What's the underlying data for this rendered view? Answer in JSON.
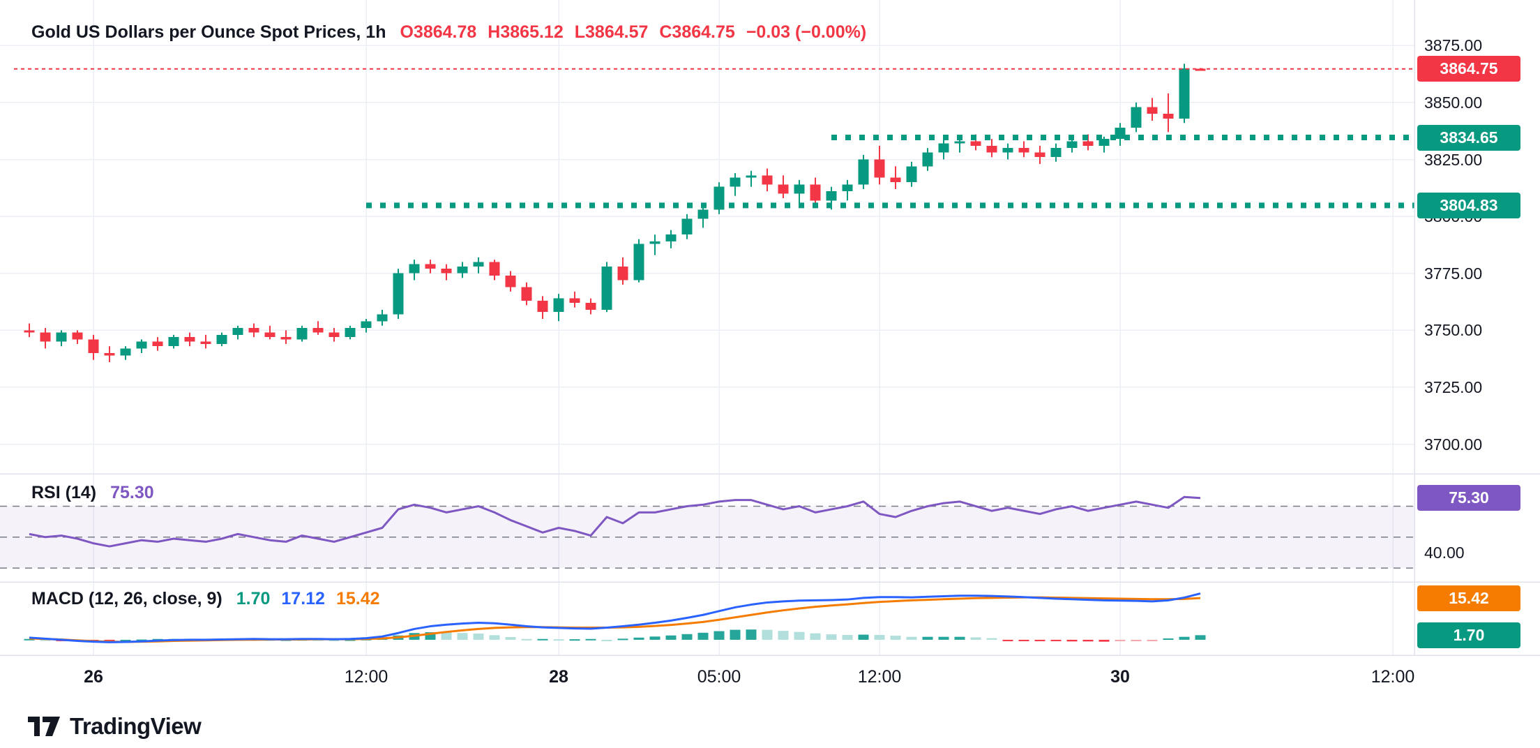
{
  "header": {
    "title": "Gold US Dollars per Ounce Spot Prices, 1h",
    "open": "O3864.78",
    "high": "H3865.12",
    "low": "L3864.57",
    "close": "C3864.75",
    "change": "−0.03 (−0.00%)"
  },
  "rsi_header": {
    "label": "RSI (14)",
    "value": "75.30"
  },
  "macd_header": {
    "label": "MACD (12, 26, close, 9)",
    "hist": "1.70",
    "macd": "17.12",
    "signal": "15.42"
  },
  "price_axis": {
    "labels": [
      "3875.00",
      "3850.00",
      "3825.00",
      "3800.00",
      "3775.00",
      "3750.00",
      "3725.00",
      "3700.00"
    ],
    "values": [
      3875,
      3850,
      3825,
      3800,
      3775,
      3750,
      3725,
      3700
    ]
  },
  "rsi_axis": {
    "label": "40.00",
    "value": 40
  },
  "badges": {
    "last_price": "3864.75",
    "level_upper": "3834.65",
    "level_lower": "3804.83",
    "rsi": "75.30",
    "macd_signal": "15.42",
    "macd_hist": "1.70"
  },
  "time_axis": {
    "labels": [
      {
        "text": "26",
        "index": 4,
        "bold": true
      },
      {
        "text": "12:00",
        "index": 21,
        "bold": false
      },
      {
        "text": "28",
        "index": 33,
        "bold": true
      },
      {
        "text": "05:00",
        "index": 43,
        "bold": false
      },
      {
        "text": "12:00",
        "index": 53,
        "bold": false
      },
      {
        "text": "30",
        "index": 68,
        "bold": true
      },
      {
        "text": "12:00",
        "index": 85,
        "bold": false
      }
    ]
  },
  "footer": {
    "brand": "TradingView"
  },
  "colors": {
    "up": "#089981",
    "down": "#f23645",
    "last_price_line": "#f23645",
    "level": "#089981",
    "rsi": "#7e57c2",
    "band_fill": "rgba(126,87,194,0.08)",
    "band_line": "#787b86",
    "macd": "#2962ff",
    "signal": "#f57c00",
    "hist_up": "#26a69a",
    "hist_up_fade": "#b2dfdb",
    "hist_down": "#f23645",
    "hist_down_fade": "#f5a6ab",
    "grid": "#eceff5",
    "separator": "#e0e3eb",
    "text": "#131722"
  },
  "chart_data": {
    "type": "candlestick",
    "title": "Gold US Dollars per Ounce Spot Prices, 1h",
    "interval": "1h",
    "price_pane": {
      "ylim": [
        3687,
        3895
      ],
      "gridlines": [
        3700,
        3725,
        3750,
        3775,
        3800,
        3825,
        3850,
        3875
      ],
      "levels": [
        {
          "value": 3864.75,
          "label": "3864.75",
          "style": "dashed",
          "color": "#f23645",
          "full_width": true
        },
        {
          "value": 3834.65,
          "label": "3834.65",
          "style": "dotted",
          "color": "#089981",
          "from_index": 50
        },
        {
          "value": 3804.83,
          "label": "3804.83",
          "style": "dotted",
          "color": "#089981",
          "from_index": 21
        }
      ],
      "candles": [
        [
          3750,
          3753,
          3747,
          3749
        ],
        [
          3749,
          3751,
          3742,
          3745
        ],
        [
          3745,
          3750,
          3743,
          3749
        ],
        [
          3749,
          3750,
          3744,
          3746
        ],
        [
          3746,
          3748,
          3737,
          3740
        ],
        [
          3740,
          3743,
          3736,
          3739
        ],
        [
          3739,
          3743,
          3737,
          3742
        ],
        [
          3742,
          3746,
          3740,
          3745
        ],
        [
          3745,
          3747,
          3741,
          3743
        ],
        [
          3743,
          3748,
          3742,
          3747
        ],
        [
          3747,
          3749,
          3743,
          3745
        ],
        [
          3745,
          3748,
          3742,
          3744
        ],
        [
          3744,
          3749,
          3743,
          3748
        ],
        [
          3748,
          3752,
          3746,
          3751
        ],
        [
          3751,
          3753,
          3747,
          3749
        ],
        [
          3749,
          3752,
          3746,
          3747
        ],
        [
          3747,
          3750,
          3744,
          3746
        ],
        [
          3746,
          3752,
          3745,
          3751
        ],
        [
          3751,
          3754,
          3748,
          3749
        ],
        [
          3749,
          3751,
          3745,
          3747
        ],
        [
          3747,
          3752,
          3746,
          3751
        ],
        [
          3751,
          3755,
          3749,
          3754
        ],
        [
          3754,
          3759,
          3752,
          3757
        ],
        [
          3757,
          3777,
          3755,
          3775
        ],
        [
          3775,
          3781,
          3772,
          3779
        ],
        [
          3779,
          3781,
          3775,
          3777
        ],
        [
          3777,
          3779,
          3772,
          3775
        ],
        [
          3775,
          3780,
          3773,
          3778
        ],
        [
          3778,
          3782,
          3775,
          3780
        ],
        [
          3780,
          3781,
          3772,
          3774
        ],
        [
          3774,
          3776,
          3767,
          3769
        ],
        [
          3769,
          3771,
          3761,
          3763
        ],
        [
          3763,
          3765,
          3755,
          3758
        ],
        [
          3758,
          3766,
          3754,
          3764
        ],
        [
          3764,
          3767,
          3760,
          3762
        ],
        [
          3762,
          3764,
          3757,
          3759
        ],
        [
          3759,
          3780,
          3758,
          3778
        ],
        [
          3778,
          3782,
          3770,
          3772
        ],
        [
          3772,
          3790,
          3771,
          3788
        ],
        [
          3788,
          3792,
          3783,
          3789
        ],
        [
          3789,
          3794,
          3786,
          3792
        ],
        [
          3792,
          3801,
          3790,
          3799
        ],
        [
          3799,
          3805,
          3795,
          3803
        ],
        [
          3803,
          3815,
          3801,
          3813
        ],
        [
          3813,
          3819,
          3809,
          3817
        ],
        [
          3817,
          3820,
          3813,
          3818
        ],
        [
          3818,
          3821,
          3811,
          3814
        ],
        [
          3814,
          3818,
          3808,
          3810
        ],
        [
          3810,
          3816,
          3806,
          3814
        ],
        [
          3814,
          3817,
          3804,
          3807
        ],
        [
          3807,
          3813,
          3803,
          3811
        ],
        [
          3811,
          3816,
          3807,
          3814
        ],
        [
          3814,
          3827,
          3812,
          3825
        ],
        [
          3825,
          3831,
          3814,
          3817
        ],
        [
          3817,
          3822,
          3812,
          3815
        ],
        [
          3815,
          3824,
          3813,
          3822
        ],
        [
          3822,
          3830,
          3820,
          3828
        ],
        [
          3828,
          3834,
          3825,
          3832
        ],
        [
          3832,
          3835,
          3828,
          3833
        ],
        [
          3833,
          3836,
          3829,
          3831
        ],
        [
          3831,
          3834,
          3826,
          3828
        ],
        [
          3828,
          3832,
          3825,
          3830
        ],
        [
          3830,
          3833,
          3826,
          3828
        ],
        [
          3828,
          3831,
          3823,
          3826
        ],
        [
          3826,
          3832,
          3824,
          3830
        ],
        [
          3830,
          3835,
          3828,
          3833
        ],
        [
          3833,
          3836,
          3829,
          3831
        ],
        [
          3831,
          3835,
          3828,
          3834
        ],
        [
          3834,
          3841,
          3831,
          3839
        ],
        [
          3839,
          3850,
          3837,
          3848
        ],
        [
          3848,
          3852,
          3842,
          3845
        ],
        [
          3845,
          3854,
          3837,
          3843
        ],
        [
          3843,
          3867,
          3841,
          3865
        ],
        [
          3864.78,
          3865.12,
          3864.57,
          3864.75
        ]
      ]
    },
    "rsi_pane": {
      "period": 14,
      "last": 75.3,
      "ylim": [
        21,
        91
      ],
      "bands": [
        70,
        50,
        30
      ],
      "values": [
        52,
        50,
        51,
        49,
        46,
        44,
        46,
        48,
        47,
        49,
        48,
        47,
        49,
        52,
        50,
        48,
        47,
        51,
        49,
        47,
        50,
        53,
        56,
        68,
        71,
        69,
        66,
        68,
        70,
        66,
        61,
        57,
        53,
        56,
        54,
        51,
        63,
        59,
        66,
        66,
        68,
        70,
        71,
        73,
        74,
        74,
        71,
        68,
        70,
        66,
        68,
        70,
        73,
        65,
        63,
        67,
        70,
        72,
        73,
        70,
        67,
        69,
        67,
        65,
        68,
        70,
        67,
        69,
        71,
        73,
        71,
        69,
        76,
        75.3
      ]
    },
    "macd_pane": {
      "params": "12, 26, close, 9",
      "last_macd": 17.12,
      "last_signal": 15.42,
      "last_hist": 1.7,
      "ylim": [
        -5.7,
        21.4
      ],
      "macd": [
        0.8,
        0.4,
        0,
        -0.4,
        -0.7,
        -0.9,
        -0.8,
        -0.6,
        -0.3,
        -0.1,
        0,
        0,
        0.1,
        0.2,
        0.3,
        0.2,
        0.2,
        0.3,
        0.3,
        0.2,
        0.3,
        0.6,
        1.2,
        2.5,
        4,
        5,
        5.6,
        6,
        6.3,
        6.1,
        5.6,
        5,
        4.6,
        4.4,
        4.2,
        4.1,
        4.5,
        5,
        5.6,
        6.3,
        7.1,
        8.1,
        9.2,
        10.6,
        12,
        13,
        13.8,
        14.2,
        14.5,
        14.6,
        14.7,
        14.9,
        15.5,
        15.8,
        15.8,
        15.7,
        15.9,
        16.1,
        16.3,
        16.3,
        16.2,
        16,
        15.8,
        15.5,
        15.2,
        15,
        14.8,
        14.6,
        14.5,
        14.4,
        14.2,
        14.6,
        15.6,
        17.12
      ],
      "signal": [
        0.5,
        0.3,
        0.1,
        -0.2,
        -0.5,
        -0.7,
        -0.8,
        -0.7,
        -0.6,
        -0.4,
        -0.3,
        -0.2,
        -0.1,
        0,
        0,
        0.1,
        0.1,
        0.1,
        0.2,
        0.2,
        0.2,
        0.3,
        0.5,
        0.9,
        1.5,
        2.2,
        2.9,
        3.5,
        4,
        4.4,
        4.6,
        4.7,
        4.7,
        4.6,
        4.5,
        4.5,
        4.5,
        4.6,
        4.8,
        5.1,
        5.5,
        6,
        6.6,
        7.4,
        8.3,
        9.2,
        10.1,
        10.9,
        11.6,
        12.2,
        12.7,
        13.1,
        13.6,
        14,
        14.3,
        14.6,
        14.8,
        15,
        15.2,
        15.4,
        15.5,
        15.6,
        15.7,
        15.7,
        15.6,
        15.5,
        15.4,
        15.3,
        15.2,
        15.1,
        15,
        15,
        15.1,
        15.42
      ],
      "hist": [
        0.3,
        0.1,
        -0.1,
        -0.2,
        -0.2,
        -0.2,
        0,
        0.1,
        0.3,
        0.3,
        0.3,
        0.2,
        0.2,
        0.2,
        0.3,
        0.1,
        0.1,
        0.2,
        0.1,
        0,
        0.1,
        0.3,
        0.7,
        1.6,
        2.5,
        2.8,
        2.7,
        2.5,
        2.3,
        1.7,
        1,
        0.3,
        0.3,
        0.2,
        0.2,
        0.3,
        0,
        0.4,
        0.8,
        1.2,
        1.6,
        2.1,
        2.6,
        3.2,
        3.7,
        3.8,
        3.7,
        3.3,
        2.9,
        2.4,
        2,
        1.8,
        1.9,
        1.8,
        1.5,
        1.1,
        1.1,
        1.1,
        1.1,
        0.9,
        0.6,
        -0.1,
        -0.3,
        -0.4,
        -0.5,
        -0.6,
        -0.6,
        -0.7,
        -0.5,
        -0.4,
        -0.3,
        0.5,
        1.1,
        1.7
      ]
    }
  }
}
